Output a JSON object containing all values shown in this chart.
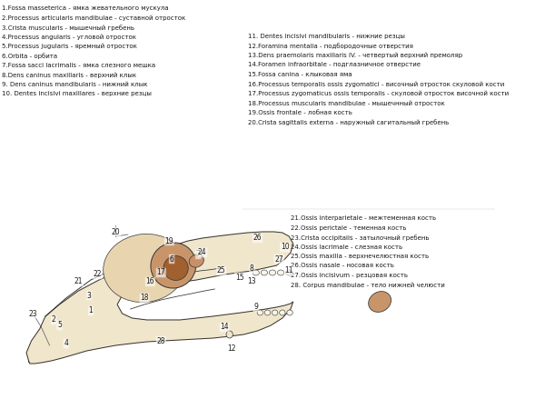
{
  "bg_color": "#ffffff",
  "text_color": "#1a1a1a",
  "skull_fill": "#f0e6cc",
  "skull_stroke": "#333333",
  "orbit_fill": "#c8956b",
  "nasal_fill": "#c8956b",
  "labels_left": [
    "1.Fossa masseterica - ямка жевательного мускула",
    "2.Processus articularis mandibulae - суставной отросток",
    "3.Crista muscularis - мышечный гребень",
    "4.Processus angularis - угловой отросток",
    "5.Processus jugularis - яремный отросток",
    "6.Orbita - орбита",
    "7.Fossa sacci lacrimalis - ямка слезного мешка",
    "8.Dens caninus maxillaris - верхний клык",
    "9. Dens caninus mandibularis - нижний клык",
    "10. Dentes incisivi maxillares - верхние резцы"
  ],
  "labels_right_top": [
    "11. Dentes incisivi mandibularis - нижние резцы",
    "12.Foramina mentalia - подбородочные отверстия",
    "13.Dens praemolaris maxillaris IV. - четвертый верхний премоляр",
    "14.Foramen infraorbitale - подглазничное отверстие",
    "15.Fossa canina - клыковая яма",
    "16.Processus temporalis ossis zygomatici - височный отросток скуловой кости",
    "17.Processus zygomaticus ossis temporalis - скуловой отросток височной кости",
    "18.Processus muscularis mandibulae - мышечнный отросток",
    "19.Ossis frontale - лобная кость",
    "20.Crista sagittalis externa - наружный сагитальный гребень"
  ],
  "labels_right_bottom": [
    "21.Ossis interparietale - межтеменная кость",
    "22.Ossis perictale - теменная кость",
    "23.Crista occipitalis - затылочный гребень",
    "24.Ossis lacrimale - слезная кость",
    "25.Ossis maxilla - верхнечелюстная кость",
    "26.Ossis nasale - носовая кость",
    "27.Ossis incisivum - резцовая кость",
    "28. Corpus mandibulae - тело нижней челюсти"
  ],
  "font_size": 5.0,
  "label_font_size": 5.5,
  "number_font_size": 5.5
}
